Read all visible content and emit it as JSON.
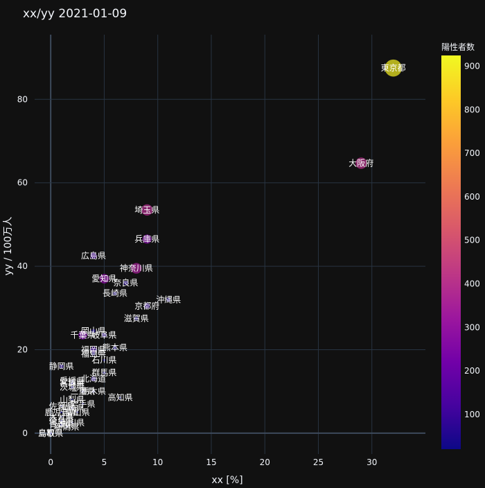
{
  "chart_data": {
    "type": "scatter",
    "title": "xx/yy 2021-01-09",
    "xlabel": "xx [%]",
    "ylabel": "yy / 100万人",
    "xlim": [
      -1.5,
      35
    ],
    "ylim": [
      -5,
      95.5
    ],
    "xticks": [
      0,
      5,
      10,
      15,
      20,
      25,
      30
    ],
    "yticks": [
      0,
      20,
      40,
      60,
      80
    ],
    "grid": true,
    "colorbar": {
      "title": "陽性者数",
      "min": 20,
      "max": 925,
      "ticks": [
        100,
        200,
        300,
        400,
        500,
        600,
        700,
        800,
        900
      ]
    },
    "points": [
      {
        "label": "東京都",
        "x": 32.0,
        "y": 87.5,
        "count": 900
      },
      {
        "label": "大阪府",
        "x": 29.0,
        "y": 64.7,
        "count": 400
      },
      {
        "label": "埼玉県",
        "x": 9.0,
        "y": 53.5,
        "count": 390
      },
      {
        "label": "兵庫県",
        "x": 9.0,
        "y": 46.5,
        "count": 255
      },
      {
        "label": "広島県",
        "x": 4.0,
        "y": 42.5,
        "count": 120
      },
      {
        "label": "神奈川県",
        "x": 8.0,
        "y": 39.5,
        "count": 350
      },
      {
        "label": "愛知県",
        "x": 5.0,
        "y": 37.0,
        "count": 280
      },
      {
        "label": "奈良県",
        "x": 7.0,
        "y": 36.0,
        "count": 60
      },
      {
        "label": "長崎県",
        "x": 6.0,
        "y": 33.5,
        "count": 45
      },
      {
        "label": "沖縄県",
        "x": 11.0,
        "y": 32.0,
        "count": 50
      },
      {
        "label": "京都府",
        "x": 9.0,
        "y": 30.5,
        "count": 90
      },
      {
        "label": "滋賀県",
        "x": 8.0,
        "y": 27.5,
        "count": 40
      },
      {
        "label": "岡山県",
        "x": 4.0,
        "y": 24.5,
        "count": 45
      },
      {
        "label": "千葉県",
        "x": 3.0,
        "y": 23.5,
        "count": 230
      },
      {
        "label": "岐阜県",
        "x": 5.0,
        "y": 23.5,
        "count": 70
      },
      {
        "label": "熊本県",
        "x": 6.0,
        "y": 20.5,
        "count": 40
      },
      {
        "label": "福岡県",
        "x": 4.0,
        "y": 20.0,
        "count": 110
      },
      {
        "label": "福島県",
        "x": 4.0,
        "y": 19.0,
        "count": 35
      },
      {
        "label": "石川県",
        "x": 5.0,
        "y": 17.5,
        "count": 20
      },
      {
        "label": "静岡県",
        "x": 1.0,
        "y": 16.0,
        "count": 60
      },
      {
        "label": "群馬県",
        "x": 5.0,
        "y": 14.5,
        "count": 28
      },
      {
        "label": "北海道",
        "x": 4.0,
        "y": 13.0,
        "count": 70
      },
      {
        "label": "愛媛県",
        "x": 2.0,
        "y": 12.5,
        "count": 16
      },
      {
        "label": "宮城県",
        "x": 2.0,
        "y": 12.0,
        "count": 25
      },
      {
        "label": "茨城県",
        "x": 2.0,
        "y": 11.0,
        "count": 30
      },
      {
        "label": "三重県",
        "x": 3.0,
        "y": 10.0,
        "count": 18
      },
      {
        "label": "栃木県",
        "x": 4.0,
        "y": 10.0,
        "count": 20
      },
      {
        "label": "高知県",
        "x": 6.5,
        "y": 8.5,
        "count": 8
      },
      {
        "label": "山梨県",
        "x": 2.0,
        "y": 8.0,
        "count": 6
      },
      {
        "label": "岩手県",
        "x": 3.0,
        "y": 7.0,
        "count": 8
      },
      {
        "label": "佐賀県",
        "x": 1.0,
        "y": 6.5,
        "count": 5
      },
      {
        "label": "宮崎県",
        "x": 2.0,
        "y": 6.0,
        "count": 7
      },
      {
        "label": "鹿児島県",
        "x": 1.0,
        "y": 5.0,
        "count": 8
      },
      {
        "label": "富山県",
        "x": 2.5,
        "y": 5.0,
        "count": 5
      },
      {
        "label": "大分県",
        "x": 1.0,
        "y": 4.0,
        "count": 4
      },
      {
        "label": "徳島県",
        "x": 1.0,
        "y": 3.0,
        "count": 2
      },
      {
        "label": "青森県",
        "x": 1.0,
        "y": 2.0,
        "count": 3
      },
      {
        "label": "香川県",
        "x": 2.0,
        "y": 2.5,
        "count": 3
      },
      {
        "label": "新潟県",
        "x": 1.5,
        "y": 1.5,
        "count": 4
      },
      {
        "label": "鳥取県",
        "x": 0.0,
        "y": 0.0,
        "count": 1
      },
      {
        "label": "島根県",
        "x": 0.0,
        "y": 0.0,
        "count": 1
      }
    ]
  }
}
